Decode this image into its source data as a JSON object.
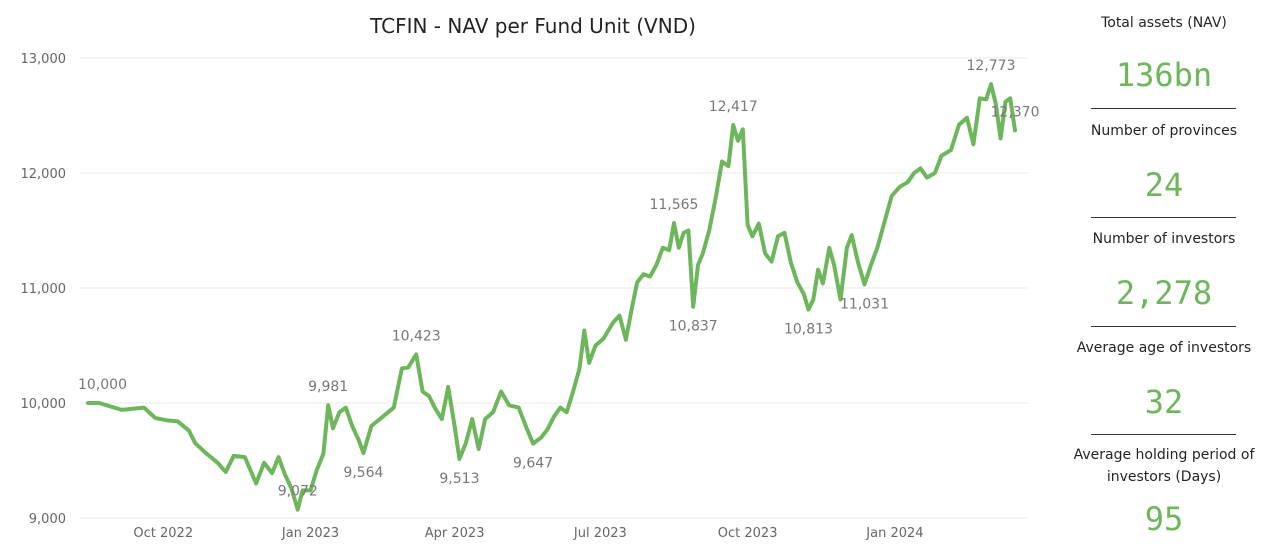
{
  "chart_data": {
    "type": "line",
    "title": "TCFIN - NAV per Fund Unit (VND)",
    "xlabel": "",
    "ylabel": "",
    "ylim": [
      9000,
      13000
    ],
    "yticks": [
      "9,000",
      "10,000",
      "11,000",
      "12,000",
      "13,000"
    ],
    "xticks": [
      {
        "label": "Oct 2022",
        "date": "2022-10-01"
      },
      {
        "label": "Jan 2023",
        "date": "2023-01-01"
      },
      {
        "label": "Apr 2023",
        "date": "2023-04-01"
      },
      {
        "label": "Jul 2023",
        "date": "2023-07-01"
      },
      {
        "label": "Oct 2023",
        "date": "2023-10-01"
      },
      {
        "label": "Jan 2024",
        "date": "2024-01-01"
      }
    ],
    "grid": true,
    "line_color": "#6DB65B",
    "series": [
      {
        "name": "",
        "points": [
          [
            "2022-08-15",
            10000
          ],
          [
            "2022-08-22",
            10000
          ],
          [
            "2022-08-29",
            9970
          ],
          [
            "2022-09-05",
            9940
          ],
          [
            "2022-09-12",
            9950
          ],
          [
            "2022-09-19",
            9960
          ],
          [
            "2022-09-26",
            9870
          ],
          [
            "2022-10-03",
            9850
          ],
          [
            "2022-10-10",
            9840
          ],
          [
            "2022-10-17",
            9760
          ],
          [
            "2022-10-21",
            9650
          ],
          [
            "2022-10-28",
            9560
          ],
          [
            "2022-11-04",
            9480
          ],
          [
            "2022-11-09",
            9400
          ],
          [
            "2022-11-14",
            9540
          ],
          [
            "2022-11-21",
            9530
          ],
          [
            "2022-11-28",
            9300
          ],
          [
            "2022-12-03",
            9480
          ],
          [
            "2022-12-08",
            9390
          ],
          [
            "2022-12-12",
            9530
          ],
          [
            "2022-12-16",
            9380
          ],
          [
            "2022-12-20",
            9260
          ],
          [
            "2022-12-24",
            9072
          ],
          [
            "2022-12-27",
            9240
          ],
          [
            "2023-01-01",
            9240
          ],
          [
            "2023-01-05",
            9420
          ],
          [
            "2023-01-09",
            9560
          ],
          [
            "2023-01-12",
            9981
          ],
          [
            "2023-01-15",
            9780
          ],
          [
            "2023-01-19",
            9920
          ],
          [
            "2023-01-23",
            9960
          ],
          [
            "2023-01-27",
            9800
          ],
          [
            "2023-01-31",
            9680
          ],
          [
            "2023-02-03",
            9564
          ],
          [
            "2023-02-08",
            9800
          ],
          [
            "2023-02-15",
            9880
          ],
          [
            "2023-02-22",
            9960
          ],
          [
            "2023-02-27",
            10300
          ],
          [
            "2023-03-03",
            10310
          ],
          [
            "2023-03-08",
            10423
          ],
          [
            "2023-03-12",
            10100
          ],
          [
            "2023-03-16",
            10060
          ],
          [
            "2023-03-20",
            9950
          ],
          [
            "2023-03-24",
            9860
          ],
          [
            "2023-03-28",
            10140
          ],
          [
            "2023-04-01",
            9800
          ],
          [
            "2023-04-04",
            9513
          ],
          [
            "2023-04-08",
            9650
          ],
          [
            "2023-04-12",
            9860
          ],
          [
            "2023-04-16",
            9600
          ],
          [
            "2023-04-20",
            9860
          ],
          [
            "2023-04-25",
            9920
          ],
          [
            "2023-04-30",
            10100
          ],
          [
            "2023-05-05",
            9980
          ],
          [
            "2023-05-11",
            9960
          ],
          [
            "2023-05-16",
            9780
          ],
          [
            "2023-05-20",
            9647
          ],
          [
            "2023-05-25",
            9700
          ],
          [
            "2023-05-29",
            9770
          ],
          [
            "2023-06-02",
            9880
          ],
          [
            "2023-06-06",
            9960
          ],
          [
            "2023-06-10",
            9920
          ],
          [
            "2023-06-14",
            10100
          ],
          [
            "2023-06-18",
            10300
          ],
          [
            "2023-06-21",
            10630
          ],
          [
            "2023-06-24",
            10350
          ],
          [
            "2023-06-28",
            10500
          ],
          [
            "2023-07-03",
            10560
          ],
          [
            "2023-07-09",
            10700
          ],
          [
            "2023-07-13",
            10760
          ],
          [
            "2023-07-17",
            10550
          ],
          [
            "2023-07-21",
            10850
          ],
          [
            "2023-07-24",
            11050
          ],
          [
            "2023-07-28",
            11120
          ],
          [
            "2023-08-01",
            11100
          ],
          [
            "2023-08-05",
            11200
          ],
          [
            "2023-08-09",
            11350
          ],
          [
            "2023-08-13",
            11330
          ],
          [
            "2023-08-16",
            11565
          ],
          [
            "2023-08-19",
            11350
          ],
          [
            "2023-08-22",
            11480
          ],
          [
            "2023-08-25",
            11500
          ],
          [
            "2023-08-28",
            10837
          ],
          [
            "2023-08-31",
            11200
          ],
          [
            "2023-09-03",
            11300
          ],
          [
            "2023-09-07",
            11500
          ],
          [
            "2023-09-11",
            11780
          ],
          [
            "2023-09-15",
            12100
          ],
          [
            "2023-09-19",
            12060
          ],
          [
            "2023-09-22",
            12417
          ],
          [
            "2023-09-25",
            12280
          ],
          [
            "2023-09-28",
            12380
          ],
          [
            "2023-10-01",
            11550
          ],
          [
            "2023-10-04",
            11450
          ],
          [
            "2023-10-08",
            11560
          ],
          [
            "2023-10-12",
            11300
          ],
          [
            "2023-10-16",
            11230
          ],
          [
            "2023-10-20",
            11450
          ],
          [
            "2023-10-24",
            11480
          ],
          [
            "2023-10-28",
            11220
          ],
          [
            "2023-11-01",
            11050
          ],
          [
            "2023-11-05",
            10950
          ],
          [
            "2023-11-08",
            10813
          ],
          [
            "2023-11-11",
            10900
          ],
          [
            "2023-11-14",
            11160
          ],
          [
            "2023-11-17",
            11040
          ],
          [
            "2023-11-21",
            11350
          ],
          [
            "2023-11-24",
            11200
          ],
          [
            "2023-11-28",
            10900
          ],
          [
            "2023-12-02",
            11350
          ],
          [
            "2023-12-05",
            11460
          ],
          [
            "2023-12-09",
            11220
          ],
          [
            "2023-12-13",
            11031
          ],
          [
            "2023-12-17",
            11200
          ],
          [
            "2023-12-21",
            11350
          ],
          [
            "2023-12-26",
            11600
          ],
          [
            "2023-12-30",
            11800
          ],
          [
            "2024-01-04",
            11880
          ],
          [
            "2024-01-09",
            11920
          ],
          [
            "2024-01-13",
            12000
          ],
          [
            "2024-01-17",
            12040
          ],
          [
            "2024-01-21",
            11960
          ],
          [
            "2024-01-26",
            12000
          ],
          [
            "2024-01-30",
            12150
          ],
          [
            "2024-02-05",
            12200
          ],
          [
            "2024-02-10",
            12420
          ],
          [
            "2024-02-15",
            12480
          ],
          [
            "2024-02-19",
            12250
          ],
          [
            "2024-02-23",
            12650
          ],
          [
            "2024-02-27",
            12640
          ],
          [
            "2024-03-01",
            12773
          ],
          [
            "2024-03-04",
            12600
          ],
          [
            "2024-03-07",
            12300
          ],
          [
            "2024-03-10",
            12620
          ],
          [
            "2024-03-13",
            12650
          ],
          [
            "2024-03-16",
            12370
          ]
        ]
      }
    ],
    "annotations": [
      {
        "text": "10,000",
        "date": "2022-08-15",
        "value": 10000,
        "pos": "above"
      },
      {
        "text": "9,072",
        "date": "2022-12-24",
        "value": 9072,
        "pos": "above"
      },
      {
        "text": "9,981",
        "date": "2023-01-12",
        "value": 9981,
        "pos": "above"
      },
      {
        "text": "9,564",
        "date": "2023-02-03",
        "value": 9564,
        "pos": "below"
      },
      {
        "text": "10,423",
        "date": "2023-03-08",
        "value": 10423,
        "pos": "above"
      },
      {
        "text": "9,513",
        "date": "2023-04-04",
        "value": 9513,
        "pos": "below"
      },
      {
        "text": "9,647",
        "date": "2023-05-20",
        "value": 9647,
        "pos": "below"
      },
      {
        "text": "11,565",
        "date": "2023-08-16",
        "value": 11565,
        "pos": "above"
      },
      {
        "text": "10,837",
        "date": "2023-08-28",
        "value": 10837,
        "pos": "below"
      },
      {
        "text": "12,417",
        "date": "2023-09-22",
        "value": 12417,
        "pos": "above"
      },
      {
        "text": "10,813",
        "date": "2023-11-08",
        "value": 10813,
        "pos": "below"
      },
      {
        "text": "11,031",
        "date": "2023-12-13",
        "value": 11031,
        "pos": "below"
      },
      {
        "text": "12,773",
        "date": "2024-03-01",
        "value": 12773,
        "pos": "above"
      },
      {
        "text": "12,370",
        "date": "2024-03-16",
        "value": 12370,
        "pos": "above"
      }
    ]
  },
  "kpis": [
    {
      "label": "Total assets (NAV)",
      "value": "136bn"
    },
    {
      "label": "Number of provinces",
      "value": "24"
    },
    {
      "label": "Number of investors",
      "value": "2,278"
    },
    {
      "label": "Average age of investors",
      "value": "32"
    },
    {
      "label": "Average holding period of investors (Days)",
      "value": "95"
    }
  ]
}
